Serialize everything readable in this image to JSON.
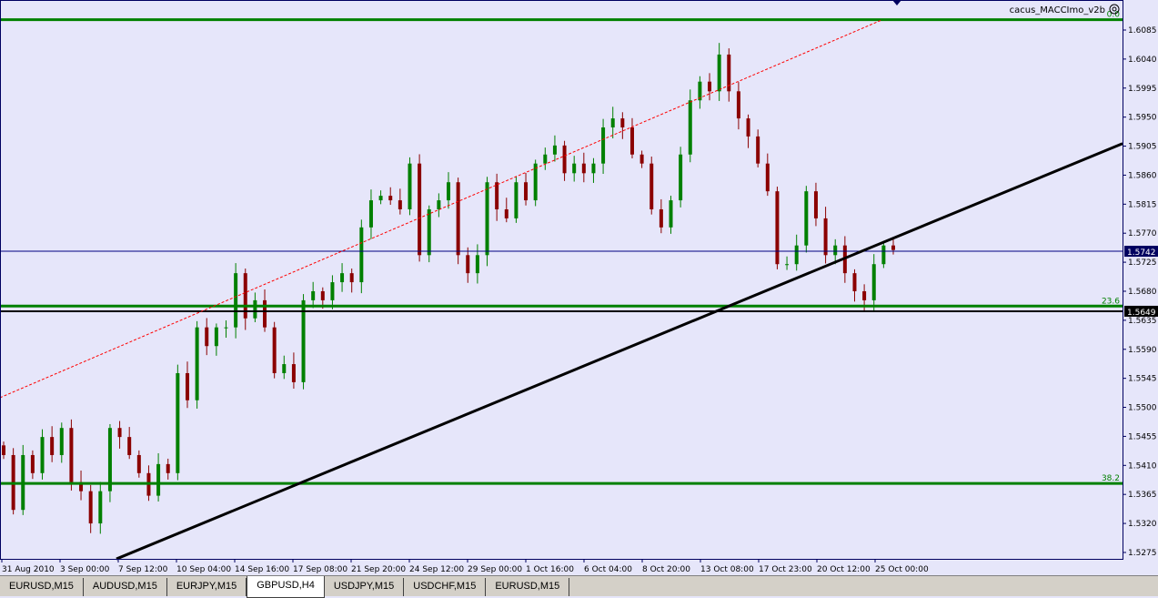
{
  "indicator_label": "cacus_MACCImo_v2b",
  "colors": {
    "background": "#e6e6fa",
    "bull": "#008000",
    "bear": "#8b0000",
    "fib": "#008000",
    "grid_axis": "#000060",
    "bid_line": "#000080",
    "trendline": "#000000",
    "channel": "#ff0000"
  },
  "tabs": [
    {
      "label": "EURUSD,M15",
      "active": false
    },
    {
      "label": "AUDUSD,M15",
      "active": false
    },
    {
      "label": "EURJPY,M15",
      "active": false
    },
    {
      "label": "GBPUSD,H4",
      "active": true
    },
    {
      "label": "USDJPY,M15",
      "active": false
    },
    {
      "label": "USDCHF,M15",
      "active": false
    },
    {
      "label": "EURUSD,M15",
      "active": false
    }
  ],
  "chart_data": {
    "type": "candlestick",
    "symbol": "GBPUSD,H4",
    "ylim": [
      1.5255,
      1.6117
    ],
    "y_ticks": [
      "1.6085",
      "1.6040",
      "1.5995",
      "1.5950",
      "1.5905",
      "1.5860",
      "1.5815",
      "1.5770",
      "1.5725",
      "1.5680",
      "1.5635",
      "1.5590",
      "1.5545",
      "1.5500",
      "1.5455",
      "1.5410",
      "1.5365",
      "1.5320",
      "1.5275"
    ],
    "x_ticks": [
      "31 Aug 2010",
      "3 Sep 00:00",
      "7 Sep 12:00",
      "10 Sep 04:00",
      "14 Sep 16:00",
      "17 Sep 08:00",
      "21 Sep 20:00",
      "24 Sep 12:00",
      "29 Sep 00:00",
      "1 Oct 16:00",
      "6 Oct 04:00",
      "8 Oct 20:00",
      "13 Oct 08:00",
      "17 Oct 23:00",
      "20 Oct 12:00",
      "25 Oct 00:00"
    ],
    "closes": [
      1.5426,
      1.5341,
      1.5426,
      1.5398,
      1.5454,
      1.5426,
      1.5468,
      1.5384,
      1.537,
      1.532,
      1.537,
      1.5468,
      1.5454,
      1.5426,
      1.5398,
      1.5363,
      1.5412,
      1.5398,
      1.5553,
      1.5511,
      1.5624,
      1.5595,
      1.5624,
      1.5624,
      1.5708,
      1.5638,
      1.5666,
      1.5624,
      1.5553,
      1.5567,
      1.5539,
      1.5666,
      1.568,
      1.5666,
      1.5694,
      1.5708,
      1.5694,
      1.5779,
      1.5821,
      1.5828,
      1.5821,
      1.5807,
      1.5878,
      1.5736,
      1.5807,
      1.5821,
      1.5849,
      1.5736,
      1.5708,
      1.5736,
      1.5849,
      1.5807,
      1.5793,
      1.5849,
      1.5821,
      1.5878,
      1.5892,
      1.5906,
      1.5863,
      1.5878,
      1.5863,
      1.5878,
      1.5934,
      1.5948,
      1.5934,
      1.5892,
      1.5878,
      1.5807,
      1.5779,
      1.5821,
      1.5892,
      1.5976,
      1.6005,
      1.599,
      1.6047,
      1.599,
      1.5948,
      1.592,
      1.5878,
      1.5835,
      1.5722,
      1.5722,
      1.5751,
      1.5835,
      1.5793,
      1.5736,
      1.5751,
      1.5708,
      1.568,
      1.5666,
      1.5722,
      1.5751,
      1.5744
    ],
    "fib_levels": [
      {
        "label": "0.0",
        "price": 1.6101
      },
      {
        "label": "23.6",
        "price": 1.5657
      },
      {
        "label": "38.2",
        "price": 1.5382
      }
    ],
    "bid_price": "1.5742",
    "horizontal_line_price": "1.5649",
    "trendline": {
      "start_price": 1.5265,
      "end_price": 1.5909
    },
    "channel_line": {
      "start_price": 1.5515,
      "end_price": 1.6101
    }
  }
}
